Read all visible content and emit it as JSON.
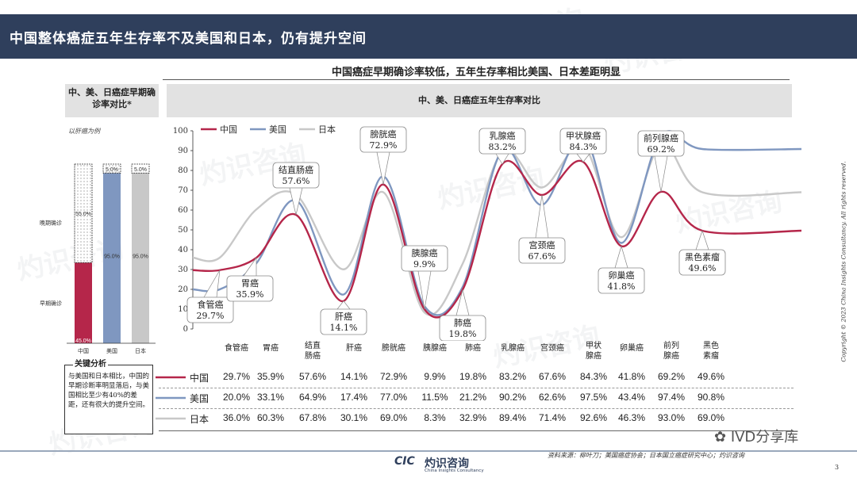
{
  "page": {
    "title": "中国整体癌症五年生存率不及美国和日本，仍有提升空间",
    "subtitle": "中国癌症早期确诊率较低，五年生存率相比美国、日本差距明显",
    "left_header": "中、美、日癌症早期确诊率对比*",
    "right_header": "中、美、日癌症五年生存率对比",
    "left_note": "以肝癌为例",
    "analysis_title": "关键分析",
    "analysis_text": "与美国和日本相比，中国的早期诊断率明显落后，与美国相比至少有40%的差距，还有很大的提升空间。",
    "source": "资料来源：柳叶刀；美国癌症协会；日本国立癌症研究中心；灼识咨询",
    "logo": "灼识咨询",
    "logo_mark": "CIC",
    "logo_sub": "China Insights Consultancy",
    "wechat": "IVD分享库",
    "copyright": "Copyright © 2023 China Insights Consultancy. All rights reserved.",
    "page_number": "3",
    "watermark": "灼识咨询"
  },
  "colors": {
    "china": "#b5264a",
    "usa": "#7f97c0",
    "japan": "#c8c8c8"
  },
  "chart_data": [
    {
      "type": "bar",
      "stacked": true,
      "categories": [
        "中国",
        "美国",
        "日本"
      ],
      "series": [
        {
          "name": "早期确诊",
          "values": [
            45.0,
            95.0,
            95.0
          ]
        },
        {
          "name": "晚期确诊",
          "values": [
            55.0,
            5.0,
            5.0
          ]
        }
      ],
      "labels": {
        "early": [
          "45.0%",
          "95.0%",
          "95.0%"
        ],
        "late": [
          "55.0%",
          "5.0%",
          "5.0%"
        ]
      },
      "ylim": [
        0,
        100
      ]
    },
    {
      "type": "line",
      "categories": [
        "食管癌",
        "胃癌",
        "结直肠癌",
        "肝癌",
        "膀胱癌",
        "胰腺癌",
        "肺癌",
        "乳腺癌",
        "宫颈癌",
        "甲状腺癌",
        "卵巢癌",
        "前列腺癌",
        "黑色素瘤"
      ],
      "table_headers": [
        "食管癌",
        "胃癌",
        "结直\n肠癌",
        "肝癌",
        "膀胱癌",
        "胰腺癌",
        "肺癌",
        "乳腺癌",
        "宫颈癌",
        "甲状\n腺癌",
        "卵巢癌",
        "前列\n腺癌",
        "黑色\n素瘤"
      ],
      "series": [
        {
          "name": "中国",
          "values": [
            29.7,
            35.9,
            57.6,
            14.1,
            72.9,
            9.9,
            19.8,
            83.2,
            67.6,
            84.3,
            41.8,
            69.2,
            49.6
          ],
          "labels": [
            "29.7%",
            "35.9%",
            "57.6%",
            "14.1%",
            "72.9%",
            "9.9%",
            "19.8%",
            "83.2%",
            "67.6%",
            "84.3%",
            "41.8%",
            "69.2%",
            "49.6%"
          ]
        },
        {
          "name": "美国",
          "values": [
            20.0,
            33.1,
            64.9,
            17.4,
            77.0,
            11.5,
            21.2,
            90.2,
            62.6,
            97.5,
            43.4,
            97.4,
            90.8
          ],
          "labels": [
            "20.0%",
            "33.1%",
            "64.9%",
            "17.4%",
            "77.0%",
            "11.5%",
            "21.2%",
            "90.2%",
            "62.6%",
            "97.5%",
            "43.4%",
            "97.4%",
            "90.8%"
          ]
        },
        {
          "name": "日本",
          "values": [
            36.0,
            60.3,
            67.8,
            30.1,
            69.0,
            8.3,
            32.9,
            89.4,
            71.4,
            92.6,
            46.3,
            93.0,
            69.0
          ],
          "labels": [
            "36.0%",
            "60.3%",
            "67.8%",
            "30.1%",
            "69.0%",
            "8.3%",
            "32.9%",
            "89.4%",
            "71.4%",
            "92.6%",
            "46.3%",
            "93.0%",
            "69.0%"
          ]
        }
      ],
      "callouts": [
        {
          "name": "食管癌",
          "value": "29.7%"
        },
        {
          "name": "胃癌",
          "value": "35.9%"
        },
        {
          "name": "结直肠癌",
          "value": "57.6%"
        },
        {
          "name": "肝癌",
          "value": "14.1%"
        },
        {
          "name": "膀胱癌",
          "value": "72.9%"
        },
        {
          "name": "胰腺癌",
          "value": "9.9%"
        },
        {
          "name": "肺癌",
          "value": "19.8%"
        },
        {
          "name": "乳腺癌",
          "value": "83.2%"
        },
        {
          "name": "宫颈癌",
          "value": "67.6%"
        },
        {
          "name": "甲状腺癌",
          "value": "84.3%"
        },
        {
          "name": "卵巢癌",
          "value": "41.8%"
        },
        {
          "name": "前列腺癌",
          "value": "69.2%"
        },
        {
          "name": "黑色素瘤",
          "value": "49.6%"
        }
      ],
      "yticks": [
        "0",
        "10",
        "20",
        "30",
        "40",
        "50",
        "60",
        "70",
        "80",
        "90",
        "100"
      ],
      "ylim": [
        0,
        100
      ],
      "legend": "top-left",
      "grid": false
    }
  ]
}
